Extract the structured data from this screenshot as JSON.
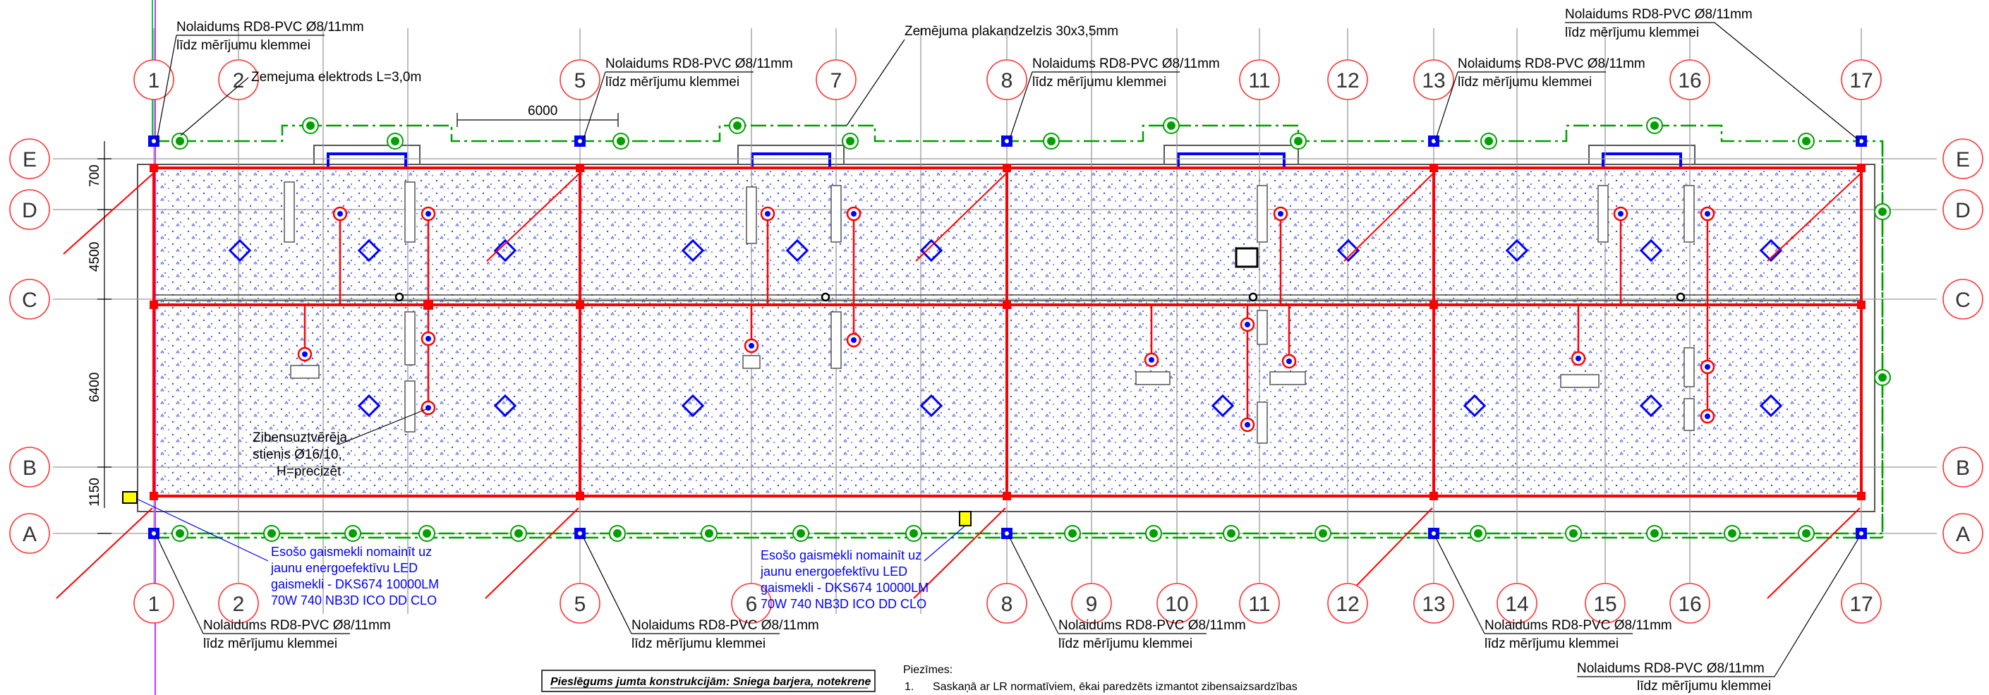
{
  "grid": {
    "columns": [
      "1",
      "2",
      "5",
      "7",
      "8",
      "11",
      "12",
      "13",
      "16",
      "17"
    ],
    "columns_bottom": [
      "1",
      "2",
      "5",
      "6",
      "8",
      "9",
      "10",
      "11",
      "12",
      "13",
      "14",
      "15",
      "16",
      "17"
    ],
    "rows_left": [
      "E",
      "D",
      "C",
      "B",
      "A"
    ],
    "rows_right": [
      "E",
      "D",
      "C",
      "B",
      "A"
    ],
    "dims_left": [
      "700",
      "4500",
      "6400",
      "1150"
    ],
    "dim_top": "6000"
  },
  "labels": {
    "down_conductor": "Nolaidums RD8-PVC Ø8/11mm",
    "to_terminal": "līdz mērījumu klemmei",
    "ground_strip": "Zemējuma plakandzelzis 30x3,5mm",
    "ground_electrode": "Zemejuma elektrods L=3,0m",
    "rod_1": "Zibensuztvērēja",
    "rod_2": "stienis Ø16/10,",
    "rod_3": "H=precizēt"
  },
  "lamp_note": [
    "Esošo gaismekli nomainīt uz",
    "jaunu energoefektīvu LED",
    "gaismekli - DKS674 10000LM",
    "70W 740 NB3D ICO DD CLO"
  ],
  "footer": {
    "box_title": "Pieslēgums jumta konstrukcijām: Sniega barjera, notekrene",
    "notes_title": "Piezīmes:",
    "note_1_num": "1.",
    "note_1": "Saskaņā ar LR normatīviem, ēkai paredzēts izmantot zibensaizsardzības"
  },
  "colors": {
    "conductor": "#ff0000",
    "roof_outline": "#0000ff",
    "ground": "#00a000",
    "grid": "#9a9a9a",
    "note_text": "#0000ff",
    "lamp": "#ffff00",
    "axis_line": "#cc33ff"
  }
}
